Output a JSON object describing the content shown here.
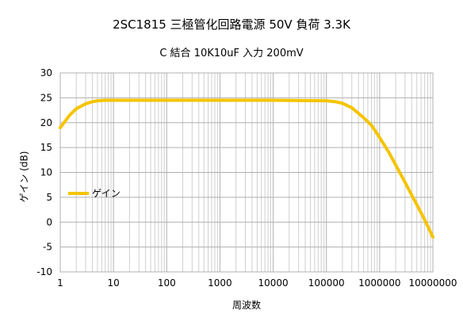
{
  "chart_data": {
    "type": "line",
    "title": "2SC1815 三極管化回路電源 50V 負荷 3.3K",
    "subtitle": "C 結合 10K10uF 入力 200mV",
    "xlabel": "周波数",
    "ylabel": "ゲイン (dB)",
    "x_scale": "log",
    "xlim": [
      1,
      10000000
    ],
    "ylim": [
      -10,
      30
    ],
    "x_tick_labels": [
      "1",
      "10",
      "100",
      "1000",
      "10000",
      "100000",
      "1000000",
      "10000000"
    ],
    "y_tick_labels": [
      "30",
      "25",
      "20",
      "15",
      "10",
      "5",
      "0",
      "-5",
      "-10"
    ],
    "grid": true,
    "legend": "left",
    "series": [
      {
        "name": "ゲイン",
        "color": "#f5c400",
        "x": [
          1,
          1.5,
          2,
          3,
          4,
          5,
          7,
          10,
          20,
          50,
          100,
          1000,
          10000,
          100000,
          150000,
          200000,
          300000,
          500000,
          700000,
          1000000,
          1500000,
          2000000,
          3000000,
          5000000,
          7000000,
          10000000
        ],
        "y": [
          19.0,
          21.5,
          22.8,
          23.8,
          24.2,
          24.4,
          24.5,
          24.5,
          24.5,
          24.5,
          24.5,
          24.5,
          24.5,
          24.4,
          24.2,
          23.9,
          23.0,
          21.0,
          19.5,
          17.0,
          14.0,
          11.5,
          8.0,
          3.5,
          0.5,
          -3.0
        ]
      }
    ]
  }
}
